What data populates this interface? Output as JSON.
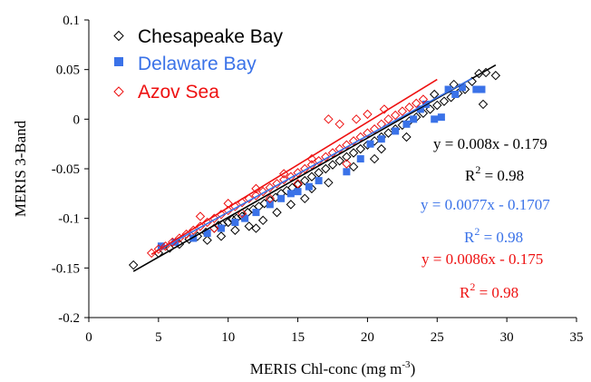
{
  "colors": {
    "chesapeake": "#000000",
    "delaware": "#3a72e8",
    "azov": "#ee1111",
    "axis": "#000000",
    "background": "#ffffff"
  },
  "chart_data": {
    "type": "scatter",
    "title": "",
    "xlabel": "MERIS Chl-conc (mg m",
    "xlabel_superscript": "-3",
    "xlabel_suffix": ")",
    "ylabel": "MERIS  3-Band",
    "xlim": [
      0,
      35
    ],
    "ylim": [
      -0.2,
      0.1
    ],
    "x_ticks": [
      0,
      5,
      10,
      15,
      20,
      25,
      30,
      35
    ],
    "x_tick_labels": [
      "0",
      "5",
      "10",
      "15",
      "20",
      "25",
      "30",
      "35"
    ],
    "y_ticks": [
      -0.2,
      -0.15,
      -0.1,
      -0.05,
      0,
      0.05,
      0.1
    ],
    "y_tick_labels": [
      "-0.2",
      "-0.15",
      "-0.1",
      "-0.05",
      "0",
      "0.05",
      "0.1"
    ],
    "grid": false,
    "legend_position": "top-left",
    "series": [
      {
        "name": "Chesapeake Bay",
        "marker": "open-diamond",
        "color": "#000000",
        "fit": {
          "slope": 0.008,
          "intercept": -0.179,
          "x_range": [
            3.2,
            29.2
          ]
        },
        "equation": "y = 0.008x - 0.179",
        "r2_label": "R",
        "r2_sup": "2",
        "r2_value": " = 0.98",
        "points": [
          [
            3.2,
            -0.147
          ],
          [
            5.0,
            -0.135
          ],
          [
            5.8,
            -0.13
          ],
          [
            6.5,
            -0.126
          ],
          [
            7.2,
            -0.121
          ],
          [
            7.8,
            -0.118
          ],
          [
            8.4,
            -0.114
          ],
          [
            9.0,
            -0.11
          ],
          [
            9.3,
            -0.107
          ],
          [
            9.6,
            -0.106
          ],
          [
            10.0,
            -0.104
          ],
          [
            10.3,
            -0.101
          ],
          [
            10.6,
            -0.1
          ],
          [
            11.0,
            -0.098
          ],
          [
            11.4,
            -0.094
          ],
          [
            11.8,
            -0.091
          ],
          [
            12.2,
            -0.088
          ],
          [
            12.6,
            -0.085
          ],
          [
            13.0,
            -0.082
          ],
          [
            13.4,
            -0.079
          ],
          [
            13.8,
            -0.075
          ],
          [
            14.2,
            -0.072
          ],
          [
            14.6,
            -0.069
          ],
          [
            15.0,
            -0.066
          ],
          [
            15.5,
            -0.062
          ],
          [
            16.0,
            -0.058
          ],
          [
            16.5,
            -0.054
          ],
          [
            17.0,
            -0.05
          ],
          [
            17.5,
            -0.046
          ],
          [
            18.0,
            -0.042
          ],
          [
            18.5,
            -0.038
          ],
          [
            19.0,
            -0.034
          ],
          [
            19.5,
            -0.03
          ],
          [
            20.0,
            -0.026
          ],
          [
            20.5,
            -0.022
          ],
          [
            21.0,
            -0.018
          ],
          [
            21.5,
            -0.014
          ],
          [
            22.0,
            -0.01
          ],
          [
            22.5,
            -0.006
          ],
          [
            23.0,
            -0.002
          ],
          [
            23.5,
            0.002
          ],
          [
            24.0,
            0.006
          ],
          [
            24.5,
            0.01
          ],
          [
            25.0,
            0.014
          ],
          [
            25.5,
            0.018
          ],
          [
            26.0,
            0.022
          ],
          [
            26.5,
            0.026
          ],
          [
            27.0,
            0.03
          ],
          [
            27.5,
            0.038
          ],
          [
            28.0,
            0.046
          ],
          [
            28.5,
            0.047
          ],
          [
            29.2,
            0.044
          ],
          [
            28.3,
            0.015
          ],
          [
            26.2,
            0.035
          ],
          [
            24.8,
            0.025
          ],
          [
            10.5,
            -0.112
          ],
          [
            11.5,
            -0.108
          ],
          [
            12.5,
            -0.102
          ],
          [
            13.5,
            -0.094
          ],
          [
            14.5,
            -0.086
          ],
          [
            16.0,
            -0.07
          ],
          [
            17.2,
            -0.064
          ],
          [
            19.0,
            -0.048
          ],
          [
            21.0,
            -0.03
          ],
          [
            22.8,
            -0.018
          ],
          [
            8.5,
            -0.122
          ],
          [
            9.5,
            -0.118
          ],
          [
            12.0,
            -0.11
          ],
          [
            15.5,
            -0.08
          ],
          [
            20.5,
            -0.04
          ]
        ]
      },
      {
        "name": "Delaware Bay",
        "marker": "filled-square",
        "color": "#3a72e8",
        "fit": {
          "slope": 0.0077,
          "intercept": -0.1707,
          "x_range": [
            5.0,
            27.5
          ]
        },
        "equation": "y = 0.0077x - 0.1707",
        "r2_label": "R",
        "r2_sup": "2",
        "r2_value": " = 0.98",
        "points": [
          [
            5.2,
            -0.128
          ],
          [
            6.2,
            -0.124
          ],
          [
            7.5,
            -0.12
          ],
          [
            8.5,
            -0.115
          ],
          [
            9.5,
            -0.11
          ],
          [
            10.5,
            -0.104
          ],
          [
            11.2,
            -0.1
          ],
          [
            12.0,
            -0.094
          ],
          [
            13.0,
            -0.086
          ],
          [
            13.8,
            -0.08
          ],
          [
            14.5,
            -0.075
          ],
          [
            15.0,
            -0.073
          ],
          [
            15.8,
            -0.068
          ],
          [
            16.5,
            -0.062
          ],
          [
            18.5,
            -0.053
          ],
          [
            19.5,
            -0.04
          ],
          [
            20.2,
            -0.025
          ],
          [
            21.0,
            -0.02
          ],
          [
            22.0,
            -0.012
          ],
          [
            22.8,
            -0.005
          ],
          [
            23.3,
            0.0
          ],
          [
            23.8,
            0.01
          ],
          [
            24.2,
            0.015
          ],
          [
            24.8,
            0.0
          ],
          [
            25.3,
            0.002
          ],
          [
            25.8,
            0.03
          ],
          [
            26.3,
            0.025
          ],
          [
            27.8,
            0.03
          ],
          [
            28.2,
            0.03
          ],
          [
            26.8,
            0.032
          ]
        ]
      },
      {
        "name": "Azov Sea",
        "marker": "open-diamond",
        "color": "#ee1111",
        "fit": {
          "slope": 0.0086,
          "intercept": -0.175,
          "x_range": [
            4.5,
            25.0
          ]
        },
        "equation": "y = 0.0086x - 0.175",
        "r2_label": "R",
        "r2_sup": "2",
        "r2_value": " = 0.98",
        "points": [
          [
            4.5,
            -0.135
          ],
          [
            5.0,
            -0.131
          ],
          [
            5.5,
            -0.128
          ],
          [
            6.0,
            -0.124
          ],
          [
            6.5,
            -0.12
          ],
          [
            7.0,
            -0.116
          ],
          [
            7.5,
            -0.112
          ],
          [
            8.0,
            -0.108
          ],
          [
            8.5,
            -0.104
          ],
          [
            9.0,
            -0.1
          ],
          [
            9.5,
            -0.096
          ],
          [
            10.0,
            -0.092
          ],
          [
            10.5,
            -0.088
          ],
          [
            11.0,
            -0.084
          ],
          [
            11.5,
            -0.08
          ],
          [
            12.0,
            -0.077
          ],
          [
            12.5,
            -0.073
          ],
          [
            13.0,
            -0.069
          ],
          [
            13.5,
            -0.065
          ],
          [
            14.0,
            -0.061
          ],
          [
            14.5,
            -0.058
          ],
          [
            15.0,
            -0.054
          ],
          [
            15.5,
            -0.05
          ],
          [
            16.0,
            -0.046
          ],
          [
            16.5,
            -0.042
          ],
          [
            17.0,
            -0.038
          ],
          [
            17.5,
            -0.034
          ],
          [
            18.0,
            -0.03
          ],
          [
            18.5,
            -0.026
          ],
          [
            19.0,
            -0.022
          ],
          [
            19.5,
            -0.018
          ],
          [
            20.0,
            -0.014
          ],
          [
            20.5,
            -0.01
          ],
          [
            21.0,
            -0.005
          ],
          [
            21.5,
            0.0
          ],
          [
            22.0,
            0.004
          ],
          [
            22.5,
            0.008
          ],
          [
            23.0,
            0.012
          ],
          [
            23.5,
            0.016
          ],
          [
            24.0,
            0.02
          ],
          [
            17.2,
            0.0
          ],
          [
            18.0,
            -0.005
          ],
          [
            19.2,
            0.0
          ],
          [
            20.0,
            0.005
          ],
          [
            21.2,
            0.01
          ],
          [
            8.0,
            -0.098
          ],
          [
            10.0,
            -0.085
          ],
          [
            12.0,
            -0.07
          ],
          [
            14.0,
            -0.055
          ],
          [
            16.0,
            -0.04
          ],
          [
            9.0,
            -0.11
          ],
          [
            11.0,
            -0.095
          ],
          [
            13.0,
            -0.08
          ],
          [
            15.0,
            -0.065
          ],
          [
            18.5,
            -0.045
          ]
        ]
      }
    ]
  }
}
